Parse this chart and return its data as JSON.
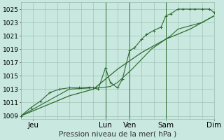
{
  "title": "Pression niveau de la mer( hPa )",
  "bg_color": "#c8e8e0",
  "grid_color": "#99bbaa",
  "line_color": "#2d6a2d",
  "ylim": [
    1008.5,
    1026.0
  ],
  "yticks": [
    1009,
    1011,
    1013,
    1015,
    1017,
    1019,
    1021,
    1023,
    1025
  ],
  "xlabel_fontsize": 7.5,
  "ylabel_fontsize": 6.5,
  "day_labels": [
    "Jeu",
    "",
    "Lun",
    "Ven",
    "",
    "Sam",
    "",
    "Dim"
  ],
  "tick_labels": [
    "Jeu",
    "Lun",
    "Ven",
    "Sam",
    "Dim"
  ],
  "tick_positions": [
    0.5,
    3.5,
    4.5,
    6.0,
    8.0
  ],
  "vline_positions": [
    3.5,
    4.5,
    6.0,
    8.0
  ],
  "series1_x": [
    0.0,
    0.4,
    0.8,
    1.2,
    1.6,
    2.0,
    2.4,
    2.8,
    3.0,
    3.2,
    3.5,
    3.7,
    4.0,
    4.2,
    4.5,
    4.7,
    5.0,
    5.2,
    5.5,
    5.8,
    6.0,
    6.2,
    6.5,
    6.7,
    7.0,
    7.2,
    7.5,
    7.8,
    8.0
  ],
  "series1_y": [
    1009.0,
    1010.2,
    1011.2,
    1012.5,
    1013.0,
    1013.2,
    1013.2,
    1013.3,
    1013.2,
    1013.0,
    1016.2,
    1014.0,
    1013.2,
    1014.5,
    1018.8,
    1019.2,
    1020.5,
    1021.2,
    1021.8,
    1022.3,
    1024.0,
    1024.3,
    1025.0,
    1025.0,
    1025.0,
    1025.0,
    1025.0,
    1025.0,
    1024.5
  ],
  "series2_x": [
    0.0,
    0.5,
    1.0,
    1.5,
    2.0,
    2.5,
    3.0,
    3.2,
    3.5,
    3.7,
    4.0,
    4.3,
    4.6,
    5.0,
    5.4,
    5.8,
    6.2,
    6.5,
    7.0,
    7.5,
    8.0
  ],
  "series2_y": [
    1009.0,
    1010.0,
    1011.0,
    1012.0,
    1013.0,
    1013.1,
    1013.2,
    1013.2,
    1013.3,
    1013.4,
    1014.0,
    1015.0,
    1016.0,
    1017.5,
    1019.0,
    1020.0,
    1021.0,
    1022.0,
    1022.5,
    1023.0,
    1024.0
  ],
  "series3_x": [
    0.0,
    1.0,
    2.0,
    3.0,
    4.0,
    5.0,
    6.0,
    7.0,
    8.0
  ],
  "series3_y": [
    1009.0,
    1010.5,
    1012.0,
    1013.0,
    1016.0,
    1018.5,
    1020.5,
    1022.0,
    1024.0
  ],
  "marker_size": 3.5
}
